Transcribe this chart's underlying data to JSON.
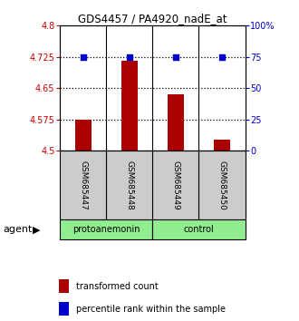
{
  "title": "GDS4457 / PA4920_nadE_at",
  "samples": [
    "GSM685447",
    "GSM685448",
    "GSM685449",
    "GSM685450"
  ],
  "bar_values": [
    4.575,
    4.715,
    4.635,
    4.527
  ],
  "percentile_values": [
    75,
    75,
    75,
    75
  ],
  "bar_color": "#aa0000",
  "dot_color": "#0000cc",
  "ylim_left": [
    4.5,
    4.8
  ],
  "ylim_right": [
    0,
    100
  ],
  "yticks_left": [
    4.5,
    4.575,
    4.65,
    4.725,
    4.8
  ],
  "ytick_labels_left": [
    "4.5",
    "4.575",
    "4.65",
    "4.725",
    "4.8"
  ],
  "yticks_right": [
    0,
    25,
    50,
    75,
    100
  ],
  "ytick_labels_right": [
    "0",
    "25",
    "50",
    "75",
    "100%"
  ],
  "hlines": [
    4.575,
    4.65,
    4.725
  ],
  "group_label": "agent",
  "bar_width": 0.35,
  "background_color": "#ffffff",
  "label_tc": "transformed count",
  "label_pr": "percentile rank within the sample",
  "sample_box_color": "#cccccc",
  "group1_label": "protoanemonin",
  "group2_label": "control",
  "group_color": "#90ee90"
}
